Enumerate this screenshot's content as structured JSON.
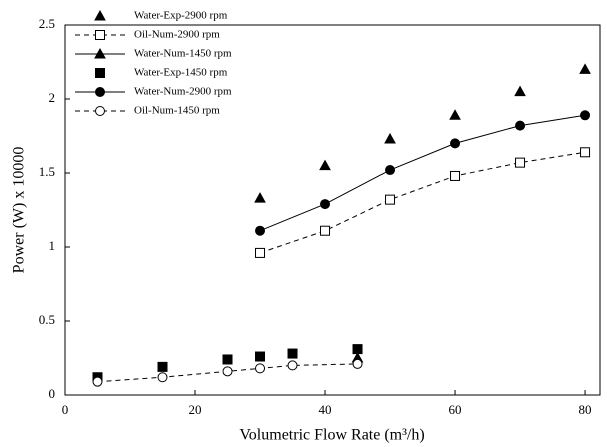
{
  "chart_data": {
    "type": "line",
    "x_label": "Volumetric  Flow  Rate  (m³/h)",
    "y_label": "Power  (W)  x 10000",
    "xlim": [
      0,
      82.3
    ],
    "ylim": [
      0,
      2.5
    ],
    "xticks": [
      0,
      20,
      40,
      60,
      80
    ],
    "yticks": [
      0,
      0.5,
      1,
      1.5,
      2,
      2.5
    ],
    "legend": "top-left",
    "series": [
      {
        "name": "Water-Exp-2900 rpm",
        "color": "#000000",
        "marker": "triangle",
        "fill": true,
        "line": "none",
        "x": [
          30,
          40,
          50,
          60,
          70,
          80
        ],
        "values": [
          1.33,
          1.55,
          1.73,
          1.89,
          2.05,
          2.2
        ]
      },
      {
        "name": "Oil-Num-2900 rpm",
        "color": "#000000",
        "marker": "square",
        "fill": false,
        "line": "dashed",
        "x": [
          30,
          40,
          50,
          60,
          70,
          80
        ],
        "values": [
          0.96,
          1.11,
          1.32,
          1.48,
          1.57,
          1.64
        ]
      },
      {
        "name": "Water-Num-1450 rpm",
        "color": "#000000",
        "marker": "triangle",
        "fill": true,
        "line": "solid",
        "x": [
          45
        ],
        "values": [
          0.25
        ]
      },
      {
        "name": "Water-Exp-1450 rpm",
        "color": "#000000",
        "marker": "square",
        "fill": true,
        "line": "none",
        "x": [
          5,
          15,
          25,
          30,
          35,
          45
        ],
        "values": [
          0.12,
          0.19,
          0.24,
          0.26,
          0.28,
          0.31
        ]
      },
      {
        "name": "Water-Num-2900 rpm",
        "color": "#000000",
        "marker": "circle",
        "fill": true,
        "line": "solid",
        "x": [
          30,
          40,
          50,
          60,
          70,
          80
        ],
        "values": [
          1.11,
          1.29,
          1.52,
          1.7,
          1.82,
          1.89
        ]
      },
      {
        "name": "Oil-Num-1450 rpm",
        "color": "#000000",
        "marker": "circle",
        "fill": false,
        "line": "dashed",
        "x": [
          5,
          15,
          25,
          30,
          35,
          45
        ],
        "values": [
          0.09,
          0.12,
          0.16,
          0.18,
          0.2,
          0.21
        ]
      }
    ]
  }
}
